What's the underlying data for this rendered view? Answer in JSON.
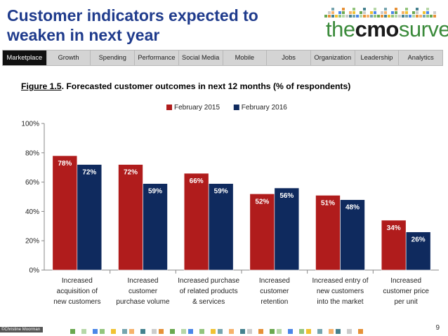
{
  "header": {
    "title_line1": "Customer indicators expected to",
    "title_line2": "weaken in next year",
    "logo_the": "the",
    "logo_cmo": "cmo",
    "logo_survey": "survey"
  },
  "nav": {
    "items": [
      "Marketplace",
      "Growth",
      "Spending",
      "Performance",
      "Social Media",
      "Mobile",
      "Jobs",
      "Organization",
      "Leadership",
      "Analytics"
    ],
    "active_index": 0
  },
  "figure": {
    "label": "Figure 1.5",
    "caption": ".  Forecasted customer outcomes in next 12 months (% of respondents)"
  },
  "chart_data": {
    "type": "bar",
    "categories": [
      [
        "Increased",
        "acquisition of",
        "new customers"
      ],
      [
        "Increased",
        "customer",
        "purchase volume"
      ],
      [
        "Increased purchase",
        "of related products",
        "& services"
      ],
      [
        "Increased",
        "customer",
        "retention"
      ],
      [
        "Increased entry of",
        "new customers",
        "into the market"
      ],
      [
        "Increased",
        "customer price",
        "per unit"
      ]
    ],
    "series": [
      {
        "name": "February 2015",
        "color": "#b01c1c",
        "values": [
          78,
          72,
          66,
          52,
          51,
          34
        ]
      },
      {
        "name": "February 2016",
        "color": "#0f2a5e",
        "values": [
          72,
          59,
          59,
          56,
          48,
          26
        ]
      }
    ],
    "ylim": [
      0,
      100
    ],
    "yticks": [
      0,
      20,
      40,
      60,
      80,
      100
    ],
    "ytick_labels": [
      "0%",
      "20%",
      "40%",
      "60%",
      "80%",
      "100%"
    ],
    "value_suffix": "%",
    "legend_position": "top-center"
  },
  "footer": {
    "page_number": "9",
    "credit": "©Christine Moorman"
  }
}
